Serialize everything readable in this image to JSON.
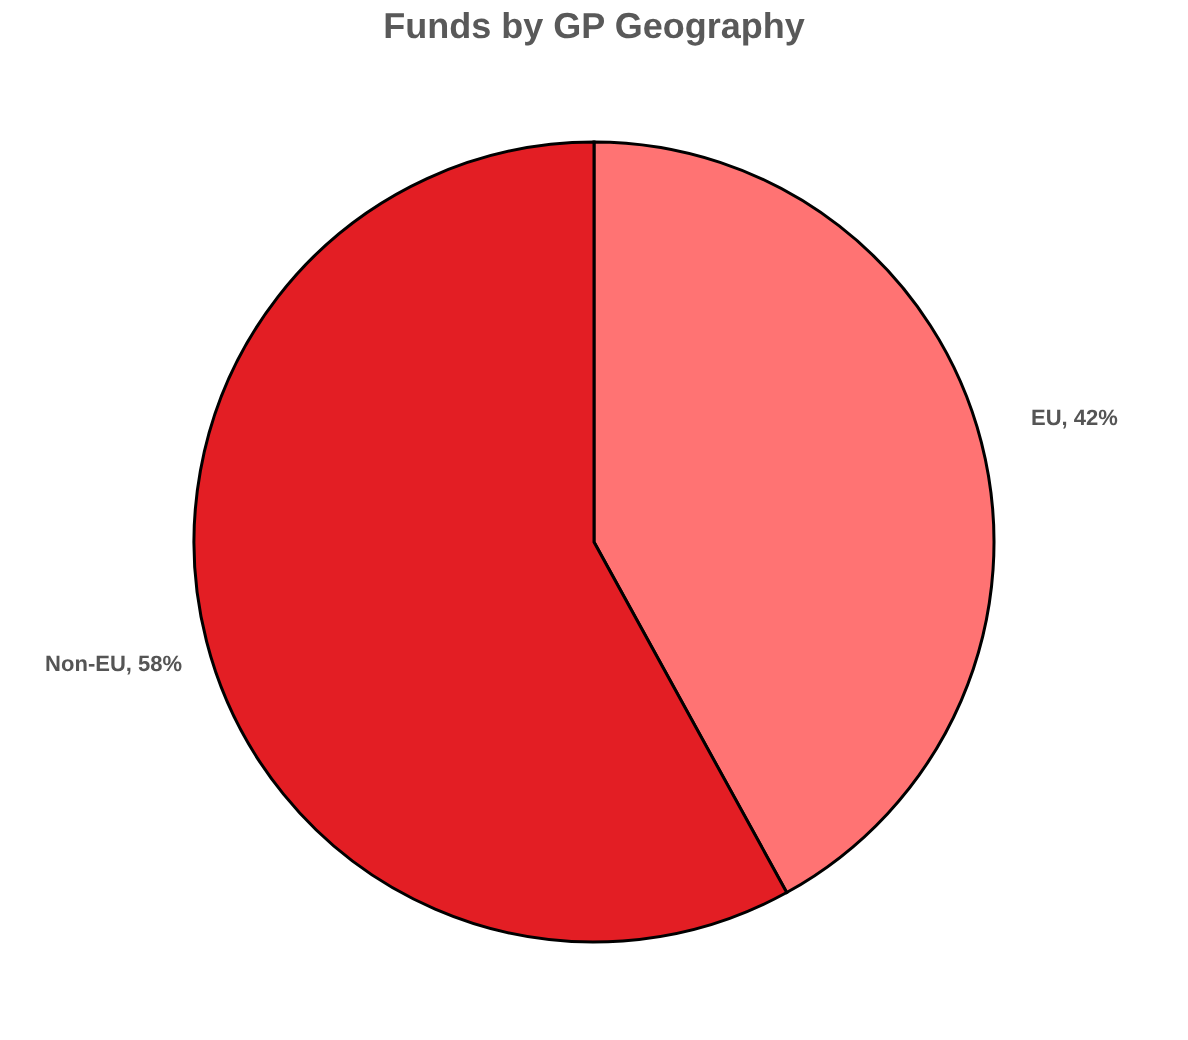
{
  "chart_data": {
    "type": "pie",
    "title": "Funds by GP Geography",
    "categories": [
      "EU",
      "Non-EU"
    ],
    "values": [
      42,
      58
    ],
    "colors": [
      "#ff7373",
      "#e31e24"
    ],
    "value_labels": [
      "42%",
      "58%"
    ],
    "legend": false
  }
}
